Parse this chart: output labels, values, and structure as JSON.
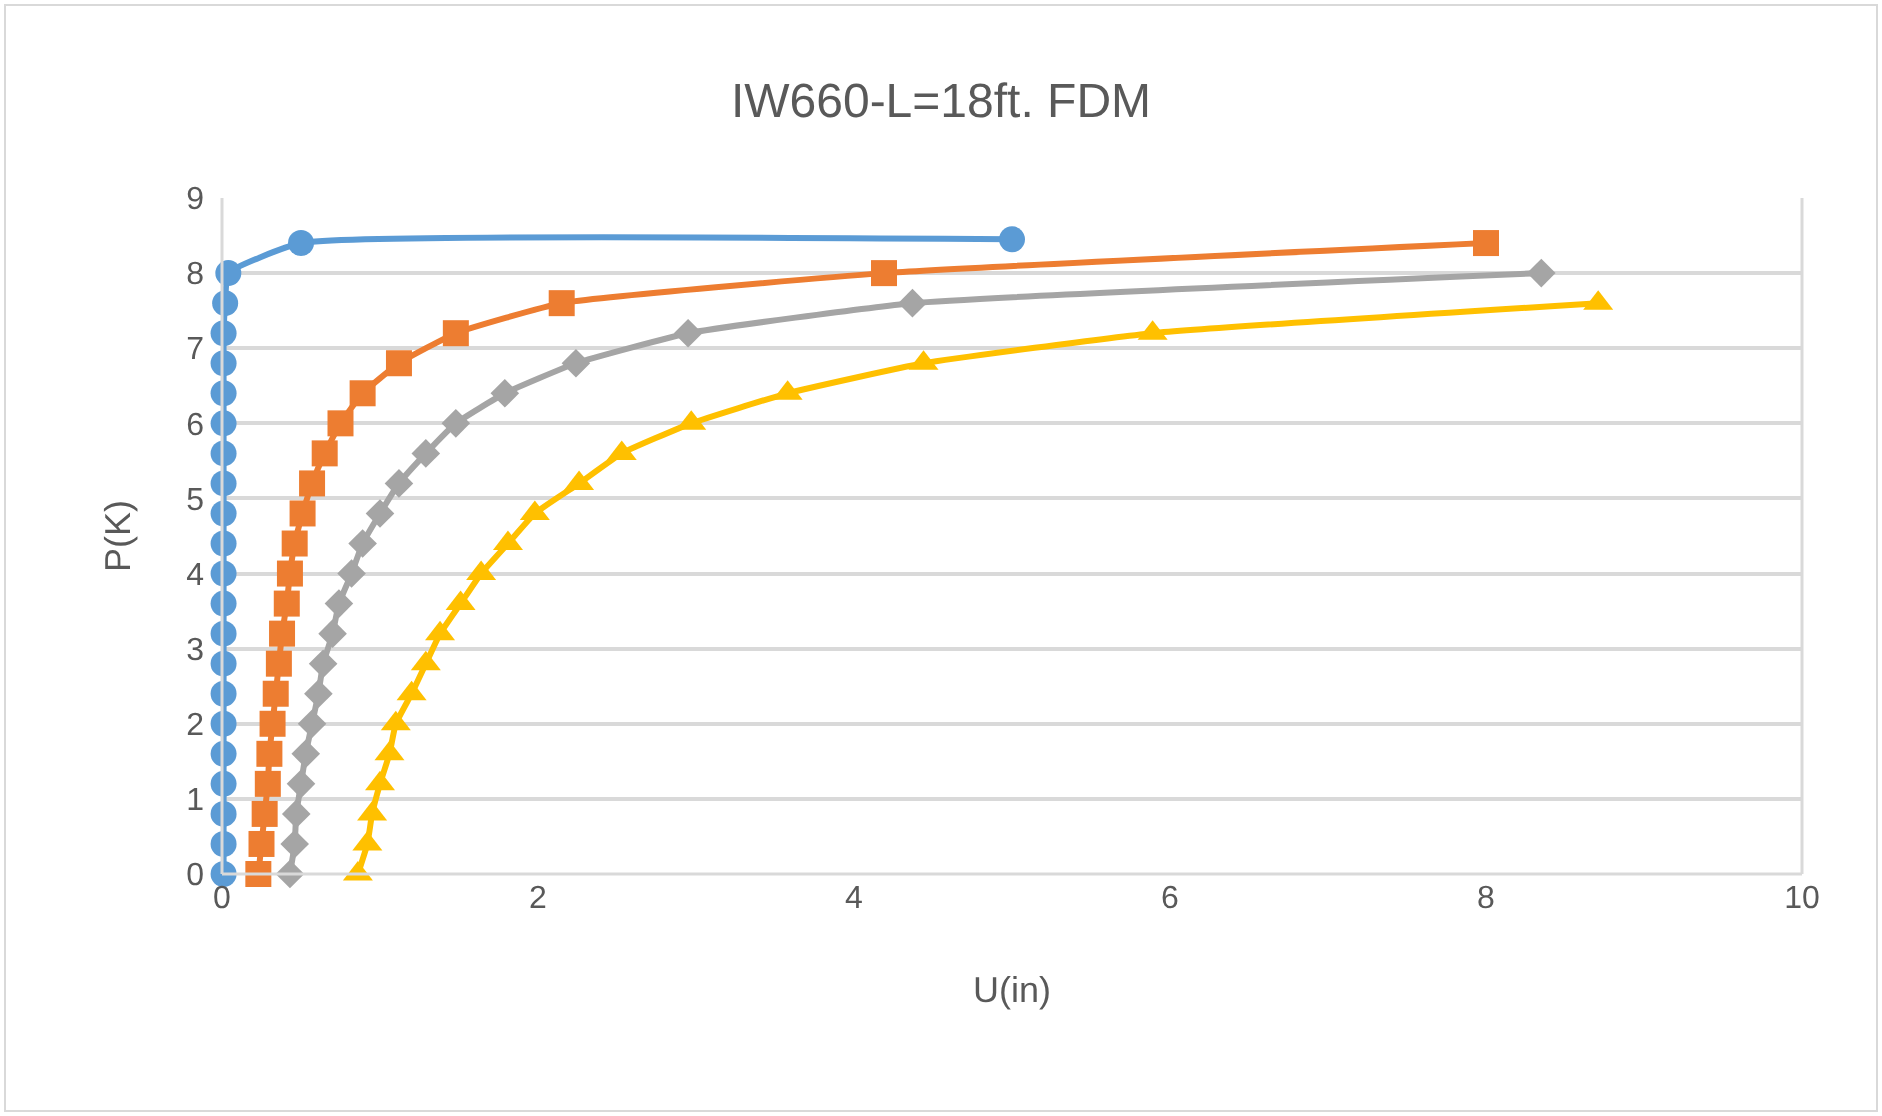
{
  "chart_data": {
    "type": "line",
    "title": "IW660-L=18ft. FDM",
    "xlabel": "U(in)",
    "ylabel": "P(K)",
    "xlim": [
      0,
      10
    ],
    "xticks": [
      0,
      2,
      4,
      6,
      8,
      10
    ],
    "ylim": [
      0,
      9
    ],
    "yticks": [
      0,
      1,
      2,
      3,
      4,
      5,
      6,
      7,
      8,
      9
    ],
    "grid": "y",
    "series": [
      {
        "color": "#5b9bd5",
        "marker": "circle",
        "x": [
          0.01,
          0.01,
          0.01,
          0.01,
          0.01,
          0.01,
          0.01,
          0.01,
          0.01,
          0.01,
          0.01,
          0.01,
          0.01,
          0.01,
          0.01,
          0.01,
          0.01,
          0.01,
          0.01,
          0.02,
          0.04,
          0.5,
          5.0
        ],
        "values": [
          0,
          0.4,
          0.8,
          1.2,
          1.6,
          2.0,
          2.4,
          2.8,
          3.2,
          3.6,
          4.0,
          4.4,
          4.8,
          5.2,
          5.6,
          6.0,
          6.4,
          6.8,
          7.2,
          7.6,
          8.0,
          8.4,
          8.45
        ]
      },
      {
        "color": "#ed7d31",
        "marker": "square",
        "x": [
          0.23,
          0.25,
          0.27,
          0.29,
          0.3,
          0.32,
          0.34,
          0.36,
          0.38,
          0.41,
          0.43,
          0.46,
          0.51,
          0.57,
          0.65,
          0.75,
          0.89,
          1.12,
          1.48,
          2.15,
          4.19,
          8.0
        ],
        "values": [
          0,
          0.4,
          0.8,
          1.2,
          1.6,
          2.0,
          2.4,
          2.8,
          3.2,
          3.6,
          4.0,
          4.4,
          4.8,
          5.2,
          5.6,
          6.0,
          6.4,
          6.8,
          7.2,
          7.6,
          8.0,
          8.4
        ]
      },
      {
        "color": "#a5a5a5",
        "marker": "diamond",
        "x": [
          0.43,
          0.46,
          0.47,
          0.5,
          0.53,
          0.57,
          0.61,
          0.64,
          0.7,
          0.74,
          0.82,
          0.89,
          1.0,
          1.12,
          1.29,
          1.48,
          1.79,
          2.24,
          2.95,
          4.37,
          8.35
        ],
        "values": [
          0,
          0.4,
          0.8,
          1.2,
          1.6,
          2.0,
          2.4,
          2.8,
          3.2,
          3.6,
          4.0,
          4.4,
          4.8,
          5.2,
          5.6,
          6.0,
          6.4,
          6.8,
          7.2,
          7.6,
          8.0
        ]
      },
      {
        "color": "#ffc000",
        "marker": "triangle",
        "x": [
          0.86,
          0.92,
          0.95,
          1.0,
          1.06,
          1.1,
          1.2,
          1.29,
          1.38,
          1.51,
          1.64,
          1.81,
          1.98,
          2.26,
          2.53,
          2.97,
          3.58,
          4.44,
          5.89,
          8.71
        ],
        "values": [
          0,
          0.4,
          0.8,
          1.2,
          1.6,
          2.0,
          2.4,
          2.8,
          3.2,
          3.6,
          4.0,
          4.4,
          4.8,
          5.2,
          5.6,
          6.0,
          6.4,
          6.8,
          7.2,
          7.6
        ]
      }
    ]
  }
}
